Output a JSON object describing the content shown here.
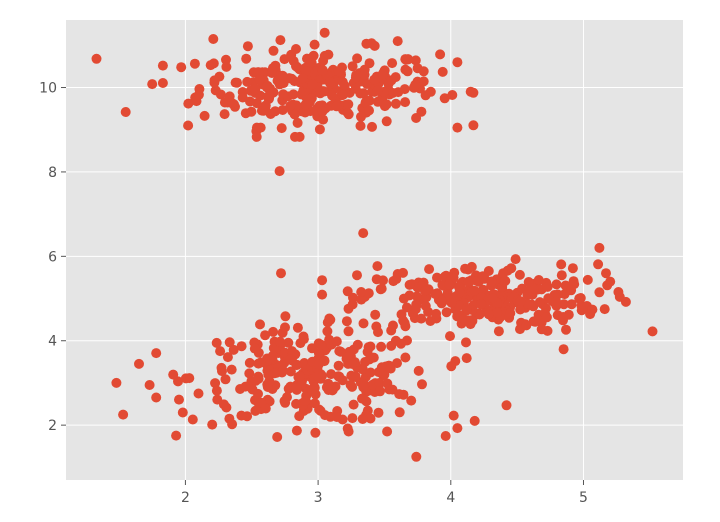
{
  "chart_data": {
    "type": "scatter",
    "title": "",
    "xlabel": "",
    "ylabel": "",
    "xlim": [
      1.1,
      5.75
    ],
    "ylim": [
      0.7,
      11.6
    ],
    "grid": true,
    "style": "ggplot",
    "marker_color": "#E24A33",
    "background_color": "#E5E5E5",
    "grid_color": "#FFFFFF",
    "xticks": [
      2,
      3,
      4,
      5
    ],
    "xtick_labels": [
      "2",
      "3",
      "4",
      "5"
    ],
    "yticks": [
      2,
      4,
      6,
      8,
      10
    ],
    "ytick_labels": [
      "2",
      "4",
      "6",
      "8",
      "10"
    ],
    "clusters": [
      {
        "center": [
          3.0,
          10.0
        ],
        "count": 290,
        "std": [
          0.45,
          0.45
        ]
      },
      {
        "center": [
          2.95,
          3.15
        ],
        "count": 280,
        "std": [
          0.45,
          0.55
        ]
      },
      {
        "center": [
          4.2,
          5.0
        ],
        "count": 280,
        "std": [
          0.45,
          0.4
        ]
      }
    ],
    "outliers": [
      [
        1.33,
        10.68
      ],
      [
        1.55,
        9.42
      ],
      [
        1.48,
        3.0
      ],
      [
        1.53,
        2.25
      ],
      [
        2.71,
        8.02
      ],
      [
        2.72,
        5.6
      ],
      [
        3.34,
        6.55
      ],
      [
        5.52,
        4.22
      ],
      [
        5.32,
        4.92
      ],
      [
        5.12,
        6.2
      ],
      [
        5.17,
        5.6
      ],
      [
        4.42,
        2.47
      ],
      [
        3.74,
        1.25
      ],
      [
        4.05,
        10.6
      ],
      [
        4.15,
        9.9
      ],
      [
        2.21,
        11.15
      ],
      [
        3.05,
        11.3
      ],
      [
        3.6,
        11.1
      ],
      [
        4.05,
        9.05
      ],
      [
        4.85,
        3.8
      ],
      [
        4.05,
        1.93
      ],
      [
        4.18,
        2.1
      ],
      [
        1.98,
        2.3
      ],
      [
        1.75,
        10.08
      ],
      [
        2.02,
        9.1
      ],
      [
        1.65,
        3.45
      ],
      [
        1.73,
        2.95
      ],
      [
        3.52,
        1.85
      ],
      [
        3.23,
        1.85
      ],
      [
        2.84,
        1.87
      ]
    ]
  }
}
